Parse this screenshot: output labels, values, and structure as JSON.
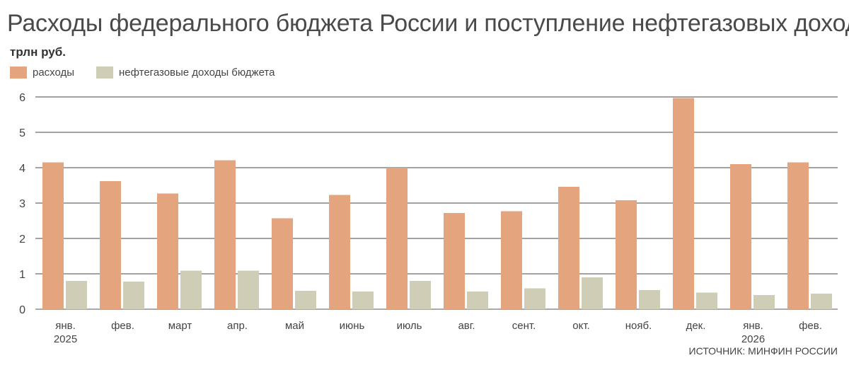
{
  "title": "Расходы федерального бюджета России и поступление нефтегазовых доходов",
  "unit": "трлн руб.",
  "legend": [
    {
      "label": "расходы",
      "color": "#e3a47e"
    },
    {
      "label": "нефтегазовые доходы бюджета",
      "color": "#cfcdb6"
    }
  ],
  "source": "ИСТОЧНИК: МИНФИН РОССИИ",
  "chart_data": {
    "type": "bar",
    "categories": [
      "янв.",
      "фев.",
      "март",
      "апр.",
      "май",
      "июнь",
      "июль",
      "авг.",
      "сент.",
      "окт.",
      "нояб.",
      "дек.",
      "янв.",
      "фев."
    ],
    "year_labels": [
      {
        "index": 0,
        "label": "2025"
      },
      {
        "index": 12,
        "label": "2026"
      }
    ],
    "series": [
      {
        "name": "расходы",
        "color": "#e3a47e",
        "values": [
          4.15,
          3.62,
          3.27,
          4.21,
          2.57,
          3.23,
          4.0,
          2.72,
          2.77,
          3.46,
          3.08,
          5.97,
          4.1,
          4.15
        ]
      },
      {
        "name": "нефтегазовые доходы бюджета",
        "color": "#cfcdb6",
        "values": [
          0.8,
          0.78,
          1.09,
          1.09,
          0.52,
          0.5,
          0.8,
          0.5,
          0.59,
          0.9,
          0.54,
          0.47,
          0.4,
          0.44
        ]
      }
    ],
    "yticks": [
      0,
      1,
      2,
      3,
      4,
      5,
      6
    ],
    "ylim": [
      0,
      6
    ],
    "grid": true,
    "legend_position": "top-left"
  }
}
